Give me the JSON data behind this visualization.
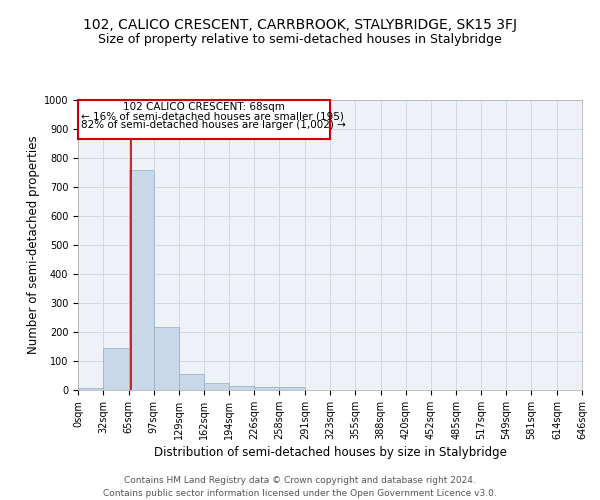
{
  "title": "102, CALICO CRESCENT, CARRBROOK, STALYBRIDGE, SK15 3FJ",
  "subtitle": "Size of property relative to semi-detached houses in Stalybridge",
  "xlabel": "Distribution of semi-detached houses by size in Stalybridge",
  "ylabel": "Number of semi-detached properties",
  "footnote1": "Contains HM Land Registry data © Crown copyright and database right 2024.",
  "footnote2": "Contains public sector information licensed under the Open Government Licence v3.0.",
  "bin_edges": [
    0,
    32,
    65,
    97,
    129,
    162,
    194,
    226,
    258,
    291,
    323,
    355,
    388,
    420,
    452,
    485,
    517,
    549,
    581,
    614,
    646
  ],
  "bar_heights": [
    8,
    145,
    760,
    218,
    55,
    25,
    13,
    10,
    10,
    0,
    0,
    0,
    0,
    0,
    0,
    0,
    0,
    0,
    0,
    0
  ],
  "bar_color": "#c8d8e8",
  "bar_edge_color": "#8ab0c8",
  "property_size": 68,
  "red_line_color": "#cc0000",
  "annotation_text_line1": "102 CALICO CRESCENT: 68sqm",
  "annotation_text_line2": "← 16% of semi-detached houses are smaller (195)",
  "annotation_text_line3": "82% of semi-detached houses are larger (1,002) →",
  "annotation_box_color": "#cc0000",
  "ylim": [
    0,
    1000
  ],
  "tick_labels": [
    "0sqm",
    "32sqm",
    "65sqm",
    "97sqm",
    "129sqm",
    "162sqm",
    "194sqm",
    "226sqm",
    "258sqm",
    "291sqm",
    "323sqm",
    "355sqm",
    "388sqm",
    "420sqm",
    "452sqm",
    "485sqm",
    "517sqm",
    "549sqm",
    "581sqm",
    "614sqm",
    "646sqm"
  ],
  "title_fontsize": 10,
  "subtitle_fontsize": 9,
  "axis_label_fontsize": 8.5,
  "tick_fontsize": 7,
  "footnote_fontsize": 6.5,
  "grid_color": "#d0d8e0",
  "bg_color": "#eef2f6"
}
